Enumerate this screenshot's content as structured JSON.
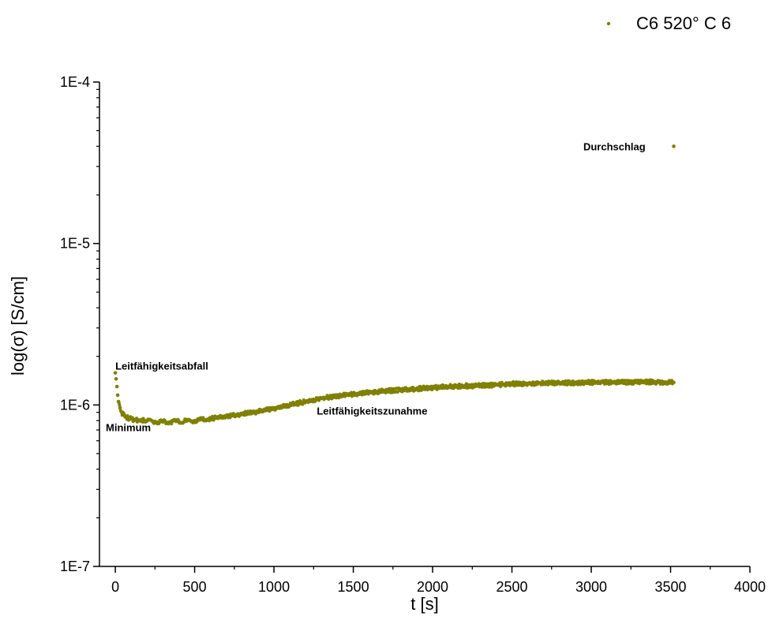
{
  "chart_data": {
    "type": "scatter",
    "xlabel": "t [s]",
    "ylabel": "log(σ) [S/cm]",
    "xlim": [
      -100,
      4000
    ],
    "ylim": [
      1e-07,
      0.0001
    ],
    "yscale": "log",
    "x_ticks": [
      0,
      500,
      1000,
      1500,
      2000,
      2500,
      3000,
      3500,
      4000
    ],
    "x_tick_labels": [
      "0",
      "500",
      "1000",
      "1500",
      "2000",
      "2500",
      "3000",
      "3500",
      "4000"
    ],
    "y_ticks": [
      1e-07,
      1e-06,
      1e-05,
      0.0001
    ],
    "y_tick_labels": [
      "1E-7",
      "1E-6",
      "1E-5",
      "1E-4"
    ],
    "grid": false,
    "legend_position": "top-right",
    "series": [
      {
        "name": "C6  520° C  6",
        "color": "#808000",
        "points": [
          [
            0,
            1.58e-06
          ],
          [
            5,
            1.45e-06
          ],
          [
            10,
            1.3e-06
          ],
          [
            15,
            1.15e-06
          ],
          [
            20,
            1.05e-06
          ],
          [
            30,
            9.6e-07
          ],
          [
            40,
            9e-07
          ],
          [
            50,
            8.7e-07
          ],
          [
            60,
            8.5e-07
          ],
          [
            70,
            8.4e-07
          ],
          [
            80,
            8.3e-07
          ],
          [
            100,
            8.2e-07
          ],
          [
            120,
            8.1e-07
          ],
          [
            150,
            8.05e-07
          ],
          [
            180,
            8e-07
          ],
          [
            200,
            7.95e-07
          ],
          [
            250,
            7.9e-07
          ],
          [
            300,
            7.85e-07
          ],
          [
            350,
            7.88e-07
          ],
          [
            400,
            7.9e-07
          ],
          [
            450,
            7.95e-07
          ],
          [
            500,
            8e-07
          ],
          [
            550,
            8.1e-07
          ],
          [
            600,
            8.25e-07
          ],
          [
            700,
            8.5e-07
          ],
          [
            800,
            8.8e-07
          ],
          [
            900,
            9.1e-07
          ],
          [
            1000,
            9.5e-07
          ],
          [
            1100,
            1e-06
          ],
          [
            1200,
            1.05e-06
          ],
          [
            1300,
            1.1e-06
          ],
          [
            1400,
            1.13e-06
          ],
          [
            1500,
            1.17e-06
          ],
          [
            1600,
            1.2e-06
          ],
          [
            1700,
            1.22e-06
          ],
          [
            1800,
            1.24e-06
          ],
          [
            1900,
            1.26e-06
          ],
          [
            2000,
            1.28e-06
          ],
          [
            2100,
            1.3e-06
          ],
          [
            2200,
            1.31e-06
          ],
          [
            2300,
            1.32e-06
          ],
          [
            2400,
            1.33e-06
          ],
          [
            2500,
            1.35e-06
          ],
          [
            2600,
            1.36e-06
          ],
          [
            2700,
            1.37e-06
          ],
          [
            2800,
            1.37e-06
          ],
          [
            2900,
            1.37e-06
          ],
          [
            3000,
            1.38e-06
          ],
          [
            3100,
            1.38e-06
          ],
          [
            3200,
            1.38e-06
          ],
          [
            3300,
            1.39e-06
          ],
          [
            3400,
            1.39e-06
          ],
          [
            3500,
            1.38e-06
          ],
          [
            3520,
            1.38e-06
          ],
          [
            3520,
            4e-05
          ]
        ]
      }
    ],
    "annotations": [
      {
        "text": "Leitfähigkeitsabfall",
        "x": 0,
        "y": 1.75e-06
      },
      {
        "text": "Minimum",
        "x": -60,
        "y": 7.3e-07
      },
      {
        "text": "Leitfähigkeitszunahme",
        "x": 1270,
        "y": 9.2e-07
      },
      {
        "text": "Durchschlag",
        "x": 2950,
        "y": 4e-05
      }
    ]
  }
}
